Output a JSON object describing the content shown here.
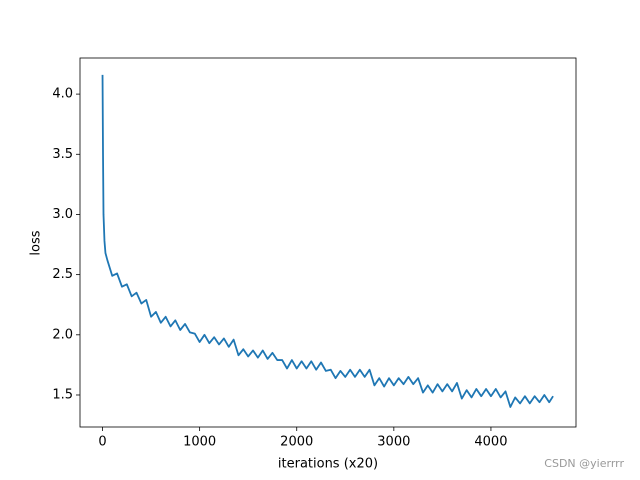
{
  "chart_data": {
    "type": "line",
    "xlabel": "iterations (x20)",
    "ylabel": "loss",
    "x": [
      0,
      5,
      10,
      20,
      30,
      50,
      100,
      150,
      200,
      250,
      300,
      350,
      400,
      450,
      500,
      550,
      600,
      650,
      700,
      750,
      800,
      850,
      900,
      950,
      1000,
      1050,
      1100,
      1150,
      1200,
      1250,
      1300,
      1350,
      1400,
      1450,
      1500,
      1550,
      1600,
      1650,
      1700,
      1750,
      1800,
      1850,
      1900,
      1950,
      2000,
      2050,
      2100,
      2150,
      2200,
      2250,
      2300,
      2350,
      2400,
      2450,
      2500,
      2550,
      2600,
      2650,
      2700,
      2750,
      2800,
      2850,
      2900,
      2950,
      3000,
      3050,
      3100,
      3150,
      3200,
      3250,
      3300,
      3350,
      3400,
      3450,
      3500,
      3550,
      3600,
      3650,
      3700,
      3750,
      3800,
      3850,
      3900,
      3950,
      4000,
      4050,
      4100,
      4150,
      4200,
      4250,
      4300,
      4350,
      4400,
      4450,
      4500,
      4550,
      4600,
      4640
    ],
    "series": [
      {
        "name": "loss",
        "color": "#1f77b4",
        "values": [
          4.16,
          3.5,
          3.0,
          2.78,
          2.68,
          2.62,
          2.49,
          2.51,
          2.4,
          2.42,
          2.32,
          2.35,
          2.26,
          2.29,
          2.15,
          2.19,
          2.1,
          2.15,
          2.07,
          2.12,
          2.04,
          2.09,
          2.02,
          2.01,
          1.94,
          2.0,
          1.93,
          1.98,
          1.92,
          1.97,
          1.9,
          1.96,
          1.83,
          1.88,
          1.82,
          1.87,
          1.81,
          1.87,
          1.8,
          1.85,
          1.79,
          1.79,
          1.72,
          1.79,
          1.72,
          1.78,
          1.72,
          1.78,
          1.71,
          1.77,
          1.7,
          1.71,
          1.64,
          1.7,
          1.65,
          1.71,
          1.65,
          1.71,
          1.65,
          1.71,
          1.58,
          1.64,
          1.57,
          1.64,
          1.58,
          1.64,
          1.59,
          1.65,
          1.59,
          1.64,
          1.52,
          1.58,
          1.52,
          1.59,
          1.53,
          1.59,
          1.53,
          1.6,
          1.47,
          1.54,
          1.48,
          1.55,
          1.49,
          1.55,
          1.49,
          1.55,
          1.48,
          1.53,
          1.4,
          1.48,
          1.43,
          1.49,
          1.43,
          1.49,
          1.44,
          1.5,
          1.44,
          1.49
        ]
      }
    ],
    "xlim": [
      -232,
      4876
    ],
    "ylim": [
      1.234,
      4.3
    ],
    "xticks": [
      0,
      1000,
      2000,
      3000,
      4000
    ],
    "yticks": [
      1.5,
      {
        "value": 2,
        "label": "2.0"
      },
      2.5,
      {
        "value": 3,
        "label": "3.0"
      },
      3.5,
      {
        "value": 4,
        "label": "4.0"
      }
    ],
    "watermark": "CSDN @yierrrr"
  }
}
